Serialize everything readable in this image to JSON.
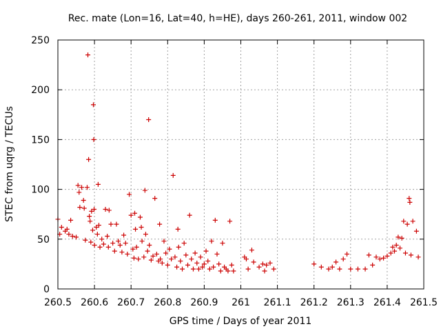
{
  "chart_data": {
    "type": "scatter",
    "title": "Rec. mate (Lon=16, Lat=40, h=HE), days 260-261, 2011, window 002",
    "xlabel": "GPS time / Days of year 2011",
    "ylabel": "STEC from uqrg / TECUs",
    "xlim": [
      260.5,
      261.5
    ],
    "ylim": [
      0,
      250
    ],
    "xticks": [
      260.5,
      260.6,
      260.7,
      260.8,
      260.9,
      261.0,
      261.1,
      261.2,
      261.3,
      261.4,
      261.5
    ],
    "xtick_labels": [
      "260.5",
      "260.6",
      "260.7",
      "260.8",
      "260.9",
      "261",
      "261.1",
      "261.2",
      "261.3",
      "261.4",
      "261.5"
    ],
    "yticks": [
      0,
      50,
      100,
      150,
      200,
      250
    ],
    "ytick_labels": [
      "0",
      "50",
      "100",
      "150",
      "200",
      "250"
    ],
    "grid": true,
    "marker": "+",
    "color": "#cc0000",
    "series": [
      {
        "name": "STEC",
        "points": [
          [
            260.5,
            70
          ],
          [
            260.505,
            55
          ],
          [
            260.51,
            62
          ],
          [
            260.52,
            58
          ],
          [
            260.525,
            60
          ],
          [
            260.53,
            55
          ],
          [
            260.535,
            69
          ],
          [
            260.54,
            53
          ],
          [
            260.55,
            52
          ],
          [
            260.555,
            104
          ],
          [
            260.558,
            97
          ],
          [
            260.56,
            82
          ],
          [
            260.565,
            102
          ],
          [
            260.57,
            89
          ],
          [
            260.572,
            81
          ],
          [
            260.575,
            49
          ],
          [
            260.58,
            102
          ],
          [
            260.582,
            235
          ],
          [
            260.584,
            130
          ],
          [
            260.586,
            73
          ],
          [
            260.588,
            68
          ],
          [
            260.59,
            47
          ],
          [
            260.592,
            78
          ],
          [
            260.595,
            59
          ],
          [
            260.597,
            185
          ],
          [
            260.598,
            150
          ],
          [
            260.599,
            80
          ],
          [
            260.6,
            44
          ],
          [
            260.605,
            62
          ],
          [
            260.608,
            55
          ],
          [
            260.61,
            105
          ],
          [
            260.612,
            64
          ],
          [
            260.615,
            42
          ],
          [
            260.62,
            50
          ],
          [
            260.625,
            45
          ],
          [
            260.63,
            80
          ],
          [
            260.635,
            53
          ],
          [
            260.638,
            42
          ],
          [
            260.64,
            79
          ],
          [
            260.645,
            65
          ],
          [
            260.65,
            46
          ],
          [
            260.655,
            38
          ],
          [
            260.66,
            65
          ],
          [
            260.665,
            48
          ],
          [
            260.67,
            44
          ],
          [
            260.675,
            37
          ],
          [
            260.68,
            54
          ],
          [
            260.685,
            46
          ],
          [
            260.69,
            35
          ],
          [
            260.695,
            95
          ],
          [
            260.7,
            74
          ],
          [
            260.705,
            40
          ],
          [
            260.708,
            31
          ],
          [
            260.71,
            76
          ],
          [
            260.712,
            60
          ],
          [
            260.715,
            42
          ],
          [
            260.72,
            30
          ],
          [
            260.725,
            72
          ],
          [
            260.728,
            62
          ],
          [
            260.73,
            48
          ],
          [
            260.735,
            32
          ],
          [
            260.738,
            99
          ],
          [
            260.74,
            55
          ],
          [
            260.745,
            38
          ],
          [
            260.748,
            170
          ],
          [
            260.75,
            44
          ],
          [
            260.755,
            29
          ],
          [
            260.76,
            33
          ],
          [
            260.765,
            91
          ],
          [
            260.77,
            35
          ],
          [
            260.775,
            28
          ],
          [
            260.778,
            65
          ],
          [
            260.78,
            30
          ],
          [
            260.785,
            26
          ],
          [
            260.79,
            48
          ],
          [
            260.795,
            36
          ],
          [
            260.8,
            24
          ],
          [
            260.805,
            40
          ],
          [
            260.81,
            30
          ],
          [
            260.815,
            114
          ],
          [
            260.82,
            32
          ],
          [
            260.825,
            22
          ],
          [
            260.828,
            60
          ],
          [
            260.83,
            42
          ],
          [
            260.835,
            28
          ],
          [
            260.84,
            20
          ],
          [
            260.845,
            46
          ],
          [
            260.85,
            34
          ],
          [
            260.855,
            24
          ],
          [
            260.86,
            74
          ],
          [
            260.865,
            30
          ],
          [
            260.87,
            20
          ],
          [
            260.875,
            36
          ],
          [
            260.88,
            26
          ],
          [
            260.885,
            20
          ],
          [
            260.89,
            32
          ],
          [
            260.895,
            22
          ],
          [
            260.9,
            25
          ],
          [
            260.905,
            38
          ],
          [
            260.91,
            28
          ],
          [
            260.915,
            20
          ],
          [
            260.92,
            48
          ],
          [
            260.925,
            22
          ],
          [
            260.93,
            69
          ],
          [
            260.935,
            35
          ],
          [
            260.94,
            25
          ],
          [
            260.945,
            18
          ],
          [
            260.95,
            46
          ],
          [
            260.955,
            22
          ],
          [
            260.96,
            20
          ],
          [
            260.965,
            18
          ],
          [
            260.97,
            68
          ],
          [
            260.975,
            24
          ],
          [
            260.98,
            18
          ],
          [
            261.01,
            32
          ],
          [
            261.015,
            30
          ],
          [
            261.02,
            20
          ],
          [
            261.03,
            39
          ],
          [
            261.035,
            27
          ],
          [
            261.05,
            22
          ],
          [
            261.06,
            25
          ],
          [
            261.065,
            18
          ],
          [
            261.07,
            24
          ],
          [
            261.08,
            26
          ],
          [
            261.09,
            20
          ],
          [
            261.2,
            25
          ],
          [
            261.22,
            22
          ],
          [
            261.24,
            20
          ],
          [
            261.25,
            22
          ],
          [
            261.26,
            27
          ],
          [
            261.27,
            20
          ],
          [
            261.28,
            30
          ],
          [
            261.29,
            35
          ],
          [
            261.3,
            20
          ],
          [
            261.32,
            20
          ],
          [
            261.34,
            20
          ],
          [
            261.35,
            34
          ],
          [
            261.36,
            24
          ],
          [
            261.37,
            32
          ],
          [
            261.38,
            30
          ],
          [
            261.39,
            31
          ],
          [
            261.4,
            33
          ],
          [
            261.41,
            36
          ],
          [
            261.415,
            42
          ],
          [
            261.42,
            38
          ],
          [
            261.425,
            44
          ],
          [
            261.43,
            52
          ],
          [
            261.435,
            41
          ],
          [
            261.44,
            51
          ],
          [
            261.445,
            68
          ],
          [
            261.45,
            36
          ],
          [
            261.455,
            65
          ],
          [
            261.46,
            91
          ],
          [
            261.462,
            87
          ],
          [
            261.465,
            34
          ],
          [
            261.47,
            68
          ],
          [
            261.48,
            58
          ],
          [
            261.485,
            32
          ]
        ]
      }
    ]
  }
}
